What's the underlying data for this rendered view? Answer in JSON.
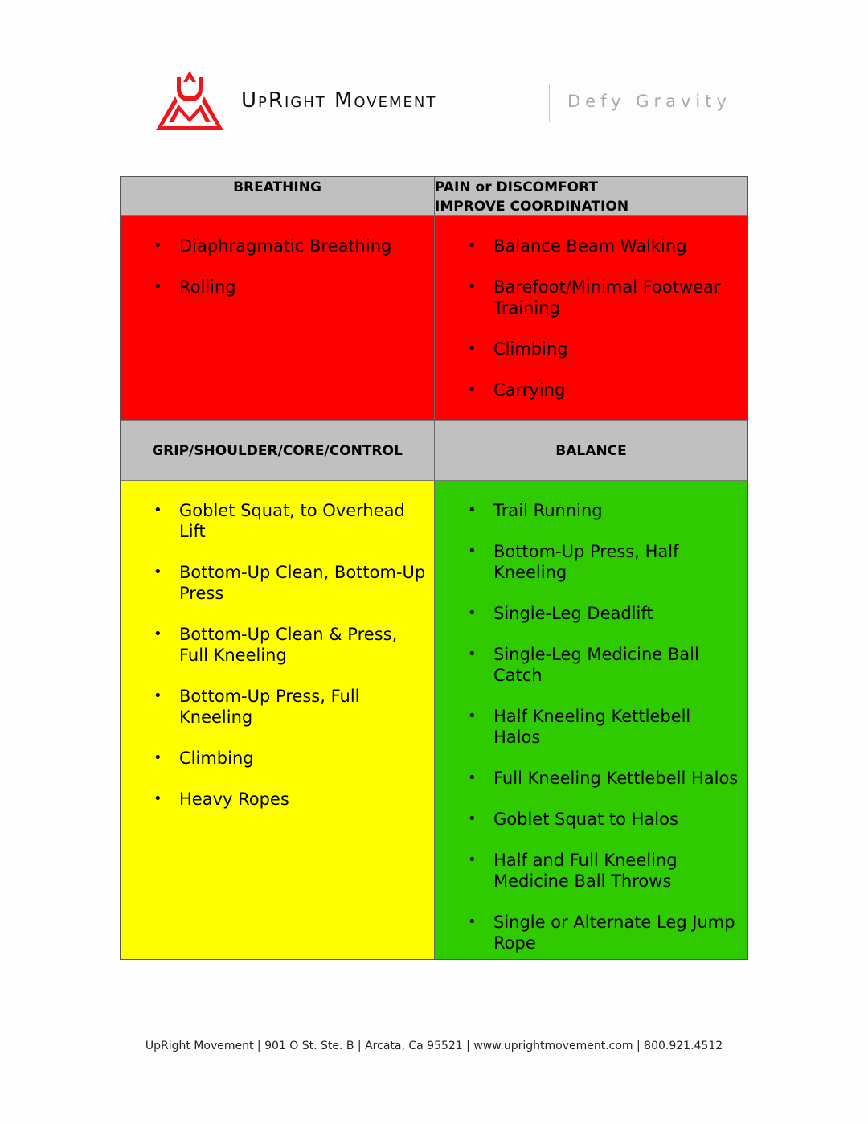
{
  "header": {
    "brand": "UpRight Movement",
    "tagline": "Defy Gravity",
    "brand_color": "#e8181c"
  },
  "table": {
    "top_left": {
      "title": "BREATHING",
      "color": "#ff0000",
      "items": [
        "Diaphragmatic Breathing",
        "Rolling"
      ]
    },
    "top_right": {
      "title_line1": "PAIN or DISCOMFORT",
      "title_line2": "IMPROVE COORDINATION",
      "color": "#ff0000",
      "items": [
        "Balance Beam Walking",
        "Barefoot/Minimal Footwear Training",
        "Climbing",
        "Carrying"
      ]
    },
    "bottom_left": {
      "title": "GRIP/SHOULDER/CORE/CONTROL",
      "color": "#ffff00",
      "items": [
        "Goblet Squat, to Overhead Lift",
        "Bottom-Up Clean, Bottom-Up Press",
        "Bottom-Up Clean & Press, Full Kneeling",
        "Bottom-Up Press, Full Kneeling",
        "Climbing",
        "Heavy Ropes"
      ]
    },
    "bottom_right": {
      "title": "BALANCE",
      "color": "#2fcb00",
      "items": [
        "Trail Running",
        "Bottom-Up Press, Half Kneeling",
        "Single-Leg Deadlift",
        "Single-Leg Medicine Ball Catch",
        "Half Kneeling Kettlebell Halos",
        "Full Kneeling Kettlebell Halos",
        "Goblet Squat to Halos",
        "Half and Full Kneeling Medicine Ball Throws",
        "Single or Alternate Leg Jump Rope"
      ]
    }
  },
  "footer": "UpRight Movement | 901 O St. Ste. B | Arcata, Ca 95521 | www.uprightmovement.com | 800.921.4512"
}
